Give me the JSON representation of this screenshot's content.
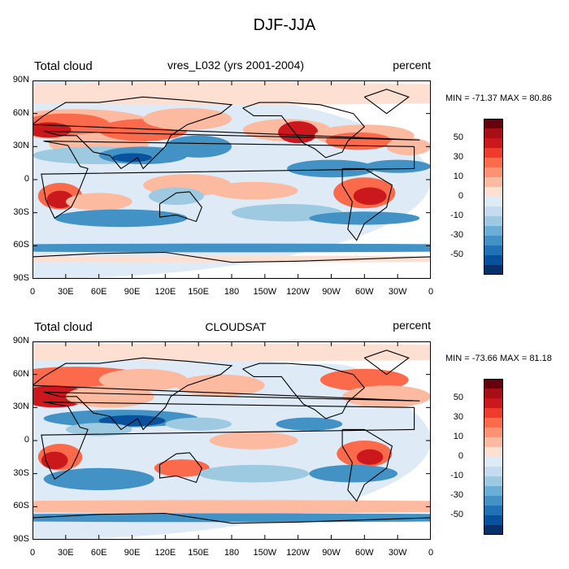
{
  "title": "DJF-JJA",
  "panels": [
    {
      "id": "top",
      "left_label": "Total cloud",
      "center_label": "vres_L032 (yrs 2001-2004)",
      "right_label": "percent",
      "stats": "MIN = -71.37 MAX =  80.86",
      "min": -71.37,
      "max": 80.86
    },
    {
      "id": "bottom",
      "left_label": "Total cloud",
      "center_label": "CLOUDSAT",
      "right_label": "percent",
      "stats": "MIN = -73.66 MAX =  81.18",
      "min": -73.66,
      "max": 81.18
    }
  ],
  "lat_ticks": [
    "90N",
    "60N",
    "30N",
    "0",
    "30S",
    "60S",
    "90S"
  ],
  "lon_ticks": [
    "0",
    "30E",
    "60E",
    "90E",
    "120E",
    "150E",
    "180",
    "150W",
    "120W",
    "90W",
    "60W",
    "30W",
    "0"
  ],
  "colorbar": {
    "labels": [
      "50",
      "30",
      "10",
      "0",
      "-10",
      "-30",
      "-50"
    ],
    "colors": [
      "#67000d",
      "#a50f15",
      "#cb181d",
      "#ef3b2c",
      "#fb6a4a",
      "#fc9272",
      "#fcbba1",
      "#fee0d2",
      "#deebf7",
      "#c6dbef",
      "#9ecae1",
      "#6baed6",
      "#4292c6",
      "#2171b5",
      "#08519c",
      "#08306b"
    ]
  },
  "map_colors": {
    "strong_pos": "#cb181d",
    "mid_pos": "#fb6a4a",
    "weak_pos": "#fcbba1",
    "faint_pos": "#fee0d2",
    "faint_neg": "#deebf7",
    "weak_neg": "#9ecae1",
    "mid_neg": "#4292c6",
    "strong_neg": "#08519c",
    "coast": "#000000"
  }
}
